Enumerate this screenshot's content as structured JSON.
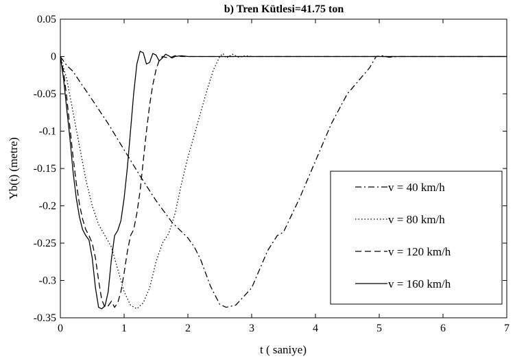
{
  "chart_data": {
    "type": "line",
    "title": "b)  Tren Kütlesi=41.75 ton",
    "xlabel": "t ( saniye)",
    "ylabel": "Yb(t) (metre)",
    "xlim": [
      0,
      7
    ],
    "ylim": [
      -0.35,
      0.05
    ],
    "xticks": [
      "0",
      "1",
      "2",
      "3",
      "4",
      "5",
      "6",
      "7"
    ],
    "yticks": [
      "0.05",
      "0",
      "-0.05",
      "-0.1",
      "-0.15",
      "-0.2",
      "-0.25",
      "-0.3",
      "-0.35"
    ],
    "grid": false,
    "legend_position": "bottom-right",
    "series": [
      {
        "name": "v = 40 km/h",
        "style": "dashdot",
        "color": "#000000",
        "points": [
          [
            0,
            0
          ],
          [
            0.1,
            -0.012
          ],
          [
            0.2,
            -0.02
          ],
          [
            0.3,
            -0.033
          ],
          [
            0.5,
            -0.058
          ],
          [
            0.75,
            -0.09
          ],
          [
            1.0,
            -0.125
          ],
          [
            1.25,
            -0.16
          ],
          [
            1.5,
            -0.193
          ],
          [
            1.75,
            -0.222
          ],
          [
            2.0,
            -0.243
          ],
          [
            2.1,
            -0.255
          ],
          [
            2.2,
            -0.272
          ],
          [
            2.35,
            -0.307
          ],
          [
            2.5,
            -0.332
          ],
          [
            2.6,
            -0.336
          ],
          [
            2.75,
            -0.333
          ],
          [
            3.0,
            -0.31
          ],
          [
            3.25,
            -0.26
          ],
          [
            3.4,
            -0.24
          ],
          [
            3.5,
            -0.235
          ],
          [
            3.75,
            -0.19
          ],
          [
            4.0,
            -0.14
          ],
          [
            4.25,
            -0.09
          ],
          [
            4.5,
            -0.05
          ],
          [
            4.7,
            -0.03
          ],
          [
            4.85,
            -0.015
          ],
          [
            4.95,
            0
          ],
          [
            5.05,
            0.001
          ],
          [
            5.15,
            -0.001
          ],
          [
            5.3,
            0
          ],
          [
            7.0,
            0
          ]
        ]
      },
      {
        "name": "v = 80 km/h",
        "style": "dotted",
        "color": "#000000",
        "points": [
          [
            0,
            0
          ],
          [
            0.1,
            -0.03
          ],
          [
            0.2,
            -0.075
          ],
          [
            0.3,
            -0.12
          ],
          [
            0.4,
            -0.165
          ],
          [
            0.5,
            -0.2
          ],
          [
            0.6,
            -0.225
          ],
          [
            0.7,
            -0.24
          ],
          [
            0.8,
            -0.255
          ],
          [
            0.9,
            -0.285
          ],
          [
            1.0,
            -0.315
          ],
          [
            1.1,
            -0.333
          ],
          [
            1.2,
            -0.338
          ],
          [
            1.3,
            -0.33
          ],
          [
            1.4,
            -0.31
          ],
          [
            1.5,
            -0.275
          ],
          [
            1.6,
            -0.25
          ],
          [
            1.7,
            -0.237
          ],
          [
            1.8,
            -0.21
          ],
          [
            1.9,
            -0.17
          ],
          [
            2.0,
            -0.135
          ],
          [
            2.1,
            -0.105
          ],
          [
            2.2,
            -0.075
          ],
          [
            2.3,
            -0.045
          ],
          [
            2.4,
            -0.018
          ],
          [
            2.5,
            0
          ],
          [
            2.55,
            0.004
          ],
          [
            2.6,
            -0.002
          ],
          [
            2.7,
            0.003
          ],
          [
            2.8,
            -0.001
          ],
          [
            2.9,
            0.001
          ],
          [
            3.0,
            0
          ],
          [
            7.0,
            0
          ]
        ]
      },
      {
        "name": "v = 120 km/h",
        "style": "dashed",
        "color": "#000000",
        "points": [
          [
            0,
            0
          ],
          [
            0.05,
            -0.02
          ],
          [
            0.1,
            -0.055
          ],
          [
            0.15,
            -0.095
          ],
          [
            0.2,
            -0.135
          ],
          [
            0.25,
            -0.17
          ],
          [
            0.3,
            -0.198
          ],
          [
            0.35,
            -0.218
          ],
          [
            0.4,
            -0.232
          ],
          [
            0.45,
            -0.24
          ],
          [
            0.5,
            -0.25
          ],
          [
            0.55,
            -0.27
          ],
          [
            0.6,
            -0.3
          ],
          [
            0.65,
            -0.326
          ],
          [
            0.7,
            -0.336
          ],
          [
            0.75,
            -0.334
          ],
          [
            0.8,
            -0.328
          ],
          [
            0.85,
            -0.336
          ],
          [
            0.9,
            -0.33
          ],
          [
            0.95,
            -0.315
          ],
          [
            1.0,
            -0.29
          ],
          [
            1.05,
            -0.262
          ],
          [
            1.1,
            -0.24
          ],
          [
            1.15,
            -0.232
          ],
          [
            1.2,
            -0.21
          ],
          [
            1.25,
            -0.18
          ],
          [
            1.3,
            -0.14
          ],
          [
            1.35,
            -0.1
          ],
          [
            1.4,
            -0.065
          ],
          [
            1.45,
            -0.038
          ],
          [
            1.5,
            -0.018
          ],
          [
            1.55,
            -0.005
          ],
          [
            1.6,
            0
          ],
          [
            1.7,
            -0.002
          ],
          [
            1.8,
            0.001
          ],
          [
            1.9,
            0
          ],
          [
            7.0,
            0
          ]
        ]
      },
      {
        "name": "v = 160 km/h",
        "style": "solid",
        "color": "#000000",
        "points": [
          [
            0,
            0
          ],
          [
            0.05,
            -0.03
          ],
          [
            0.1,
            -0.07
          ],
          [
            0.15,
            -0.11
          ],
          [
            0.2,
            -0.155
          ],
          [
            0.25,
            -0.19
          ],
          [
            0.3,
            -0.215
          ],
          [
            0.35,
            -0.232
          ],
          [
            0.4,
            -0.24
          ],
          [
            0.45,
            -0.246
          ],
          [
            0.5,
            -0.27
          ],
          [
            0.55,
            -0.31
          ],
          [
            0.6,
            -0.336
          ],
          [
            0.65,
            -0.338
          ],
          [
            0.7,
            -0.334
          ],
          [
            0.75,
            -0.315
          ],
          [
            0.8,
            -0.272
          ],
          [
            0.85,
            -0.24
          ],
          [
            0.9,
            -0.233
          ],
          [
            0.95,
            -0.22
          ],
          [
            1.0,
            -0.19
          ],
          [
            1.05,
            -0.15
          ],
          [
            1.1,
            -0.1
          ],
          [
            1.15,
            -0.05
          ],
          [
            1.2,
            -0.01
          ],
          [
            1.25,
            0.007
          ],
          [
            1.3,
            0.005
          ],
          [
            1.35,
            -0.01
          ],
          [
            1.4,
            -0.008
          ],
          [
            1.45,
            0.004
          ],
          [
            1.5,
            0.002
          ],
          [
            1.55,
            -0.006
          ],
          [
            1.6,
            -0.002
          ],
          [
            1.65,
            0.003
          ],
          [
            1.7,
            0.001
          ],
          [
            1.75,
            -0.002
          ],
          [
            1.8,
            0
          ],
          [
            1.9,
            0.001
          ],
          [
            2.0,
            0
          ],
          [
            7.0,
            0
          ]
        ]
      }
    ]
  }
}
